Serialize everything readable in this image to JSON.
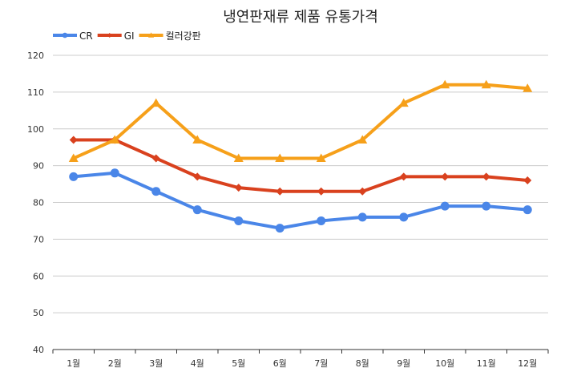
{
  "chart_data": {
    "type": "line",
    "title": "냉연판재류 제품 유통가격",
    "xlabel": "",
    "ylabel": "",
    "ylim": [
      40,
      120
    ],
    "yticks": [
      40,
      50,
      60,
      70,
      80,
      90,
      100,
      110,
      120
    ],
    "grid": true,
    "legend_position": "top-left",
    "categories": [
      "1월",
      "2월",
      "3월",
      "4월",
      "5월",
      "6월",
      "7월",
      "8월",
      "9월",
      "10월",
      "11월",
      "12월"
    ],
    "series": [
      {
        "name": "CR",
        "color": "#4a86e8",
        "marker": "circle",
        "values": [
          87,
          88,
          83,
          78,
          75,
          73,
          75,
          76,
          76,
          79,
          79,
          78
        ]
      },
      {
        "name": "GI",
        "color": "#d9411e",
        "marker": "diamond",
        "values": [
          97,
          97,
          92,
          87,
          84,
          83,
          83,
          83,
          87,
          87,
          87,
          86
        ]
      },
      {
        "name": "컬러강판",
        "color": "#f6a01a",
        "marker": "triangle",
        "values": [
          92,
          97,
          107,
          97,
          92,
          92,
          92,
          97,
          107,
          112,
          112,
          111
        ]
      }
    ]
  }
}
